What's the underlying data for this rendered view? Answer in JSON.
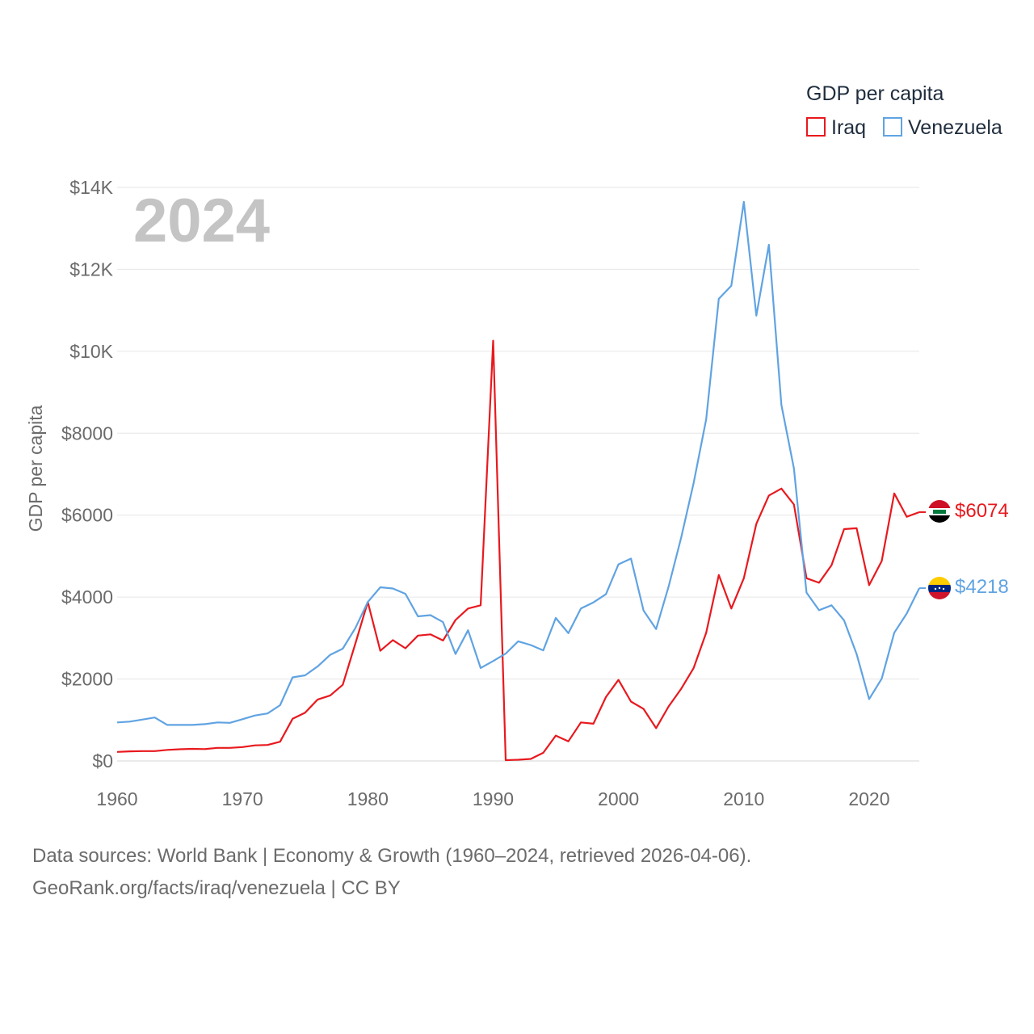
{
  "chart_data": {
    "type": "line",
    "title": "GDP per capita",
    "current_year": "2024",
    "ylabel": "GDP per capita",
    "xlabel": "",
    "xlim": [
      1960,
      2024
    ],
    "ylim": [
      0,
      14000
    ],
    "y_ticks": [
      0,
      2000,
      4000,
      6000,
      8000,
      10000,
      12000,
      14000
    ],
    "y_tick_labels": [
      "$0",
      "$2000",
      "$4000",
      "$6000",
      "$8000",
      "$10K",
      "$12K",
      "$14K"
    ],
    "x_ticks": [
      1960,
      1970,
      1980,
      1990,
      2000,
      2010,
      2020
    ],
    "x_tick_labels": [
      "1960",
      "1970",
      "1980",
      "1990",
      "2000",
      "2010",
      "2020"
    ],
    "legend_position": "top-right",
    "series": [
      {
        "name": "Iraq",
        "color": "#e8191e",
        "end_label": "$6074",
        "flag": "Iraq flag",
        "x": [
          1960,
          1961,
          1962,
          1963,
          1964,
          1965,
          1966,
          1967,
          1968,
          1969,
          1970,
          1971,
          1972,
          1973,
          1974,
          1975,
          1976,
          1977,
          1978,
          1979,
          1980,
          1981,
          1982,
          1983,
          1984,
          1985,
          1986,
          1987,
          1988,
          1989,
          1990,
          1991,
          1992,
          1993,
          1994,
          1995,
          1996,
          1997,
          1998,
          1999,
          2000,
          2001,
          2002,
          2003,
          2004,
          2005,
          2006,
          2007,
          2008,
          2009,
          2010,
          2011,
          2012,
          2013,
          2014,
          2015,
          2016,
          2017,
          2018,
          2019,
          2020,
          2021,
          2022,
          2023,
          2024
        ],
        "values": [
          220,
          235,
          240,
          240,
          270,
          285,
          295,
          290,
          320,
          320,
          340,
          380,
          390,
          470,
          1030,
          1180,
          1500,
          1600,
          1860,
          2860,
          3880,
          2690,
          2950,
          2750,
          3060,
          3090,
          2940,
          3440,
          3720,
          3800,
          10260,
          20,
          30,
          50,
          200,
          620,
          480,
          940,
          910,
          1560,
          1980,
          1450,
          1270,
          800,
          1330,
          1760,
          2270,
          3130,
          4540,
          3720,
          4460,
          5790,
          6480,
          6650,
          6260,
          4460,
          4350,
          4780,
          5660,
          5680,
          4290,
          4880,
          6530,
          5960,
          6074
        ]
      },
      {
        "name": "Venezuela",
        "color": "#60a3e2",
        "end_label": "$4218",
        "flag": "Venezuela flag",
        "x": [
          1960,
          1961,
          1962,
          1963,
          1964,
          1965,
          1966,
          1967,
          1968,
          1969,
          1970,
          1971,
          1972,
          1973,
          1974,
          1975,
          1976,
          1977,
          1978,
          1979,
          1980,
          1981,
          1982,
          1983,
          1984,
          1985,
          1986,
          1987,
          1988,
          1989,
          1990,
          1991,
          1992,
          1993,
          1994,
          1995,
          1996,
          1997,
          1998,
          1999,
          2000,
          2001,
          2002,
          2003,
          2004,
          2005,
          2006,
          2007,
          2008,
          2009,
          2010,
          2011,
          2012,
          2013,
          2014,
          2015,
          2016,
          2017,
          2018,
          2019,
          2020,
          2021,
          2022,
          2023,
          2024
        ],
        "values": [
          940,
          960,
          1010,
          1060,
          880,
          880,
          880,
          900,
          940,
          930,
          1020,
          1110,
          1160,
          1360,
          2040,
          2090,
          2310,
          2590,
          2740,
          3240,
          3880,
          4240,
          4210,
          4080,
          3530,
          3560,
          3390,
          2610,
          3190,
          2270,
          2440,
          2620,
          2920,
          2830,
          2700,
          3490,
          3120,
          3720,
          3870,
          4070,
          4800,
          4940,
          3670,
          3220,
          4260,
          5450,
          6790,
          8340,
          11280,
          11600,
          13650,
          10870,
          12600,
          8690,
          7140,
          4110,
          3680,
          3800,
          3430,
          2610,
          1510,
          2010,
          3130,
          3600,
          4218
        ]
      }
    ]
  },
  "legend": {
    "title": "GDP per capita",
    "items": [
      "Iraq",
      "Venezuela"
    ]
  },
  "source": {
    "line1": "Data sources: World Bank | Economy & Growth (1960–2024, retrieved 2026-04-06).",
    "line2": "GeoRank.org/facts/iraq/venezuela | CC BY"
  }
}
